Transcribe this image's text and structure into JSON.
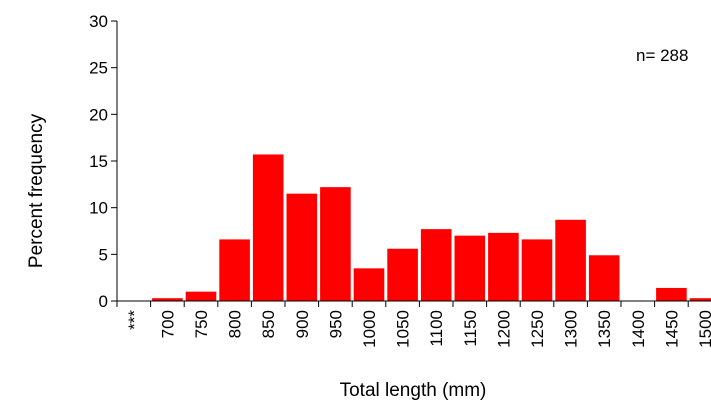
{
  "chart_data": {
    "type": "bar",
    "xlabel": "Total length (mm)",
    "ylabel": "Percent frequency",
    "ylim": [
      0,
      30
    ],
    "yticks": [
      0,
      5,
      10,
      15,
      20,
      25,
      30
    ],
    "grid": false,
    "annotation": "n= 288",
    "bar_color": "#ff0000",
    "categories": [
      "***",
      "700",
      "750",
      "800",
      "850",
      "900",
      "950",
      "1000",
      "1050",
      "1100",
      "1150",
      "1200",
      "1250",
      "1300",
      "1350",
      "1400",
      "1450",
      "1500"
    ],
    "values": [
      0,
      0.3,
      1.0,
      6.6,
      15.7,
      11.5,
      12.2,
      3.5,
      5.6,
      7.7,
      7.0,
      7.3,
      6.6,
      8.7,
      4.9,
      0,
      1.4,
      0.3
    ]
  }
}
